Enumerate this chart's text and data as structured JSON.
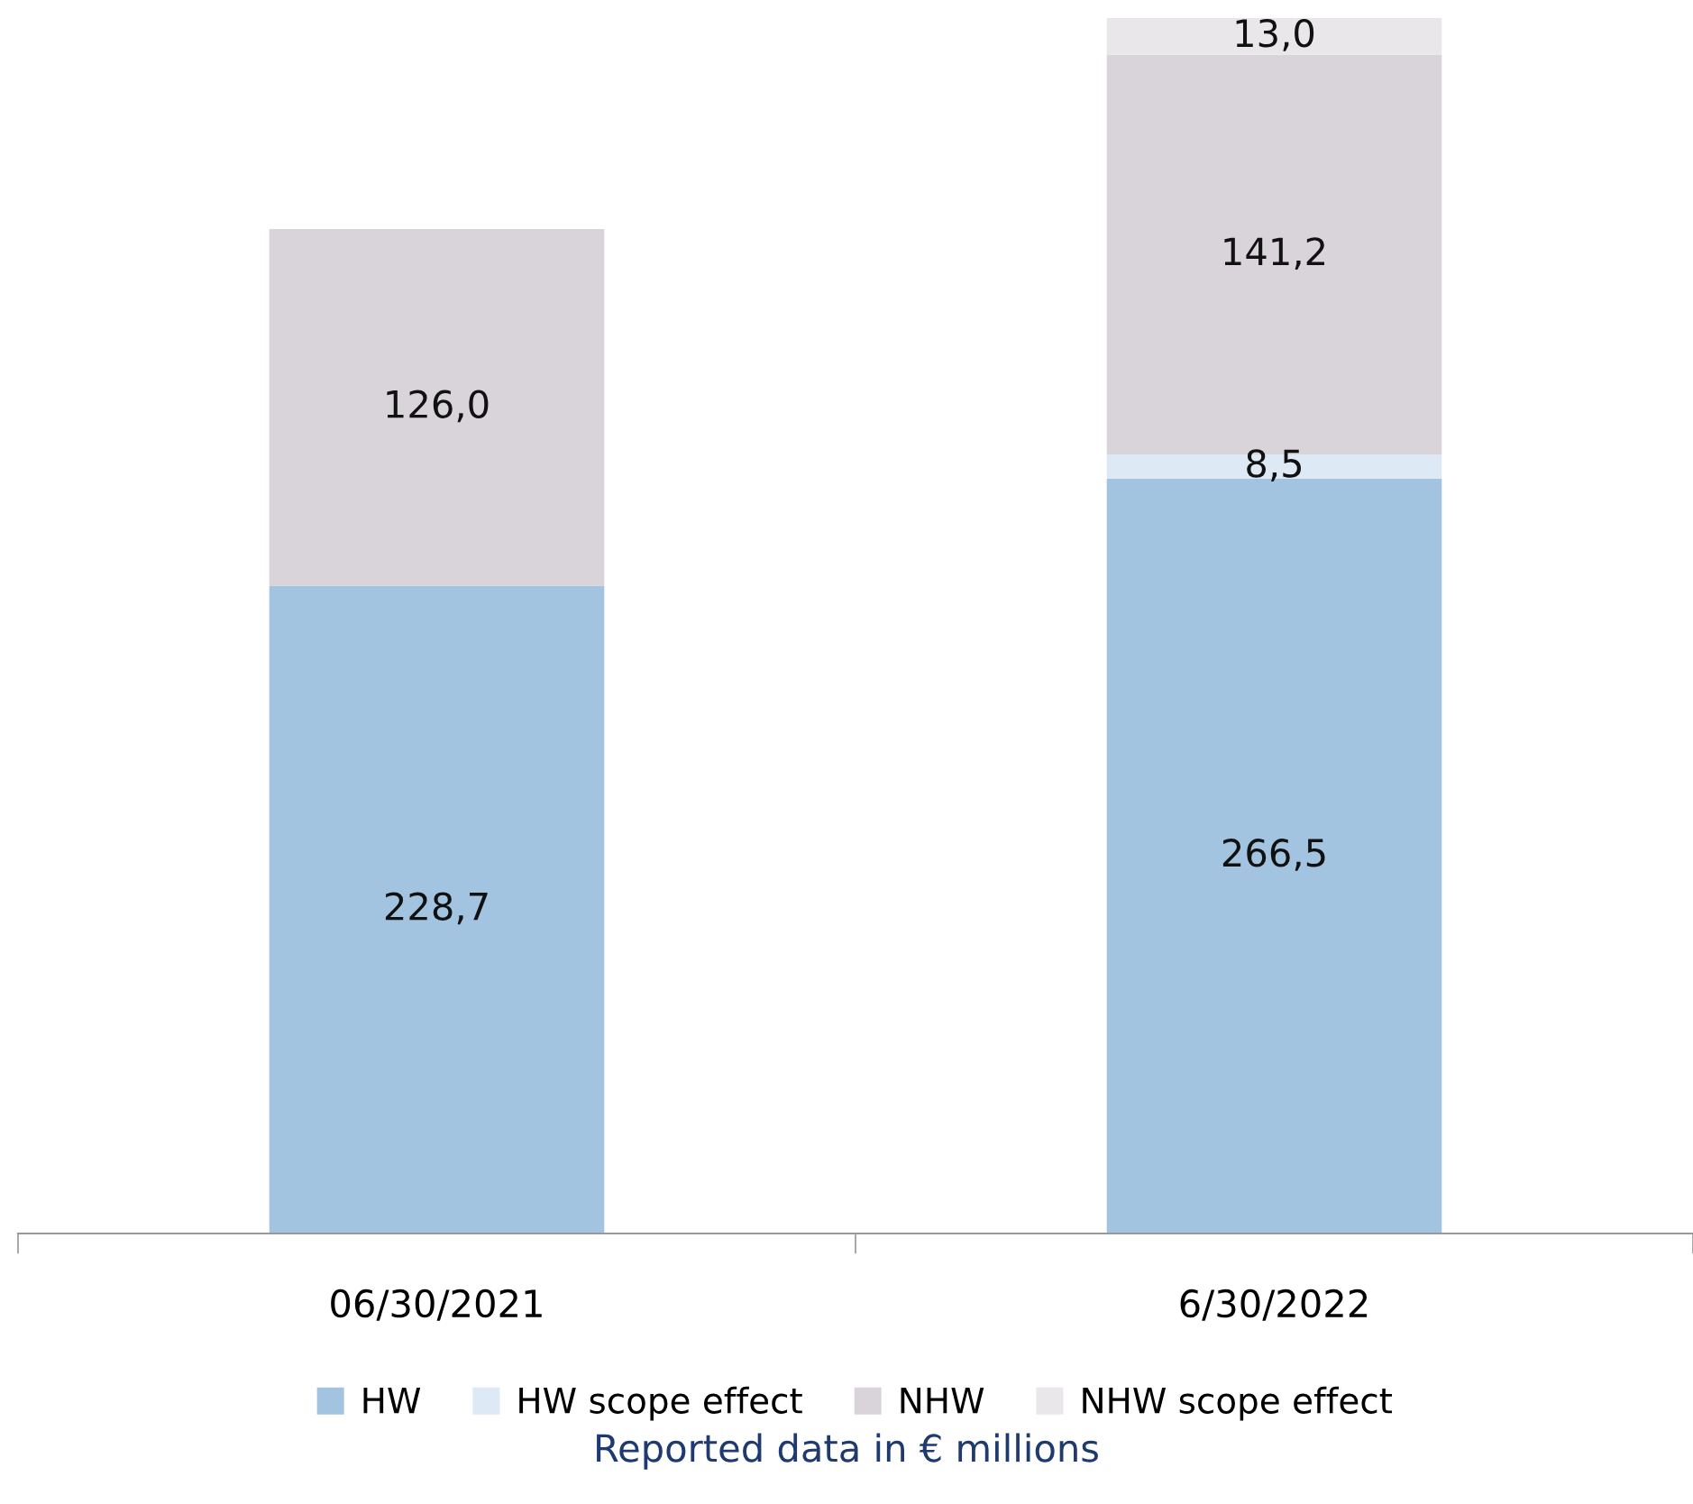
{
  "chart_data": {
    "type": "bar",
    "stacked": true,
    "categories": [
      "06/30/2021",
      "6/30/2022"
    ],
    "series": [
      {
        "name": "HW",
        "color": "#a3c4e1",
        "values": [
          228.7,
          266.5
        ],
        "value_labels": [
          "228,7",
          "266,5"
        ]
      },
      {
        "name": "HW scope effect",
        "color": "#dde9f5",
        "values": [
          null,
          8.5
        ],
        "value_labels": [
          null,
          "8,5"
        ]
      },
      {
        "name": "NHW",
        "color": "#d9d3da",
        "values": [
          126.0,
          141.2
        ],
        "value_labels": [
          "126,0",
          "141,2"
        ]
      },
      {
        "name": "NHW scope effect",
        "color": "#e9e7ea",
        "values": [
          null,
          13.0
        ],
        "value_labels": [
          null,
          "13,0"
        ]
      }
    ],
    "legend": "bottom",
    "annotations": [
      "Reported data in € millions"
    ]
  }
}
